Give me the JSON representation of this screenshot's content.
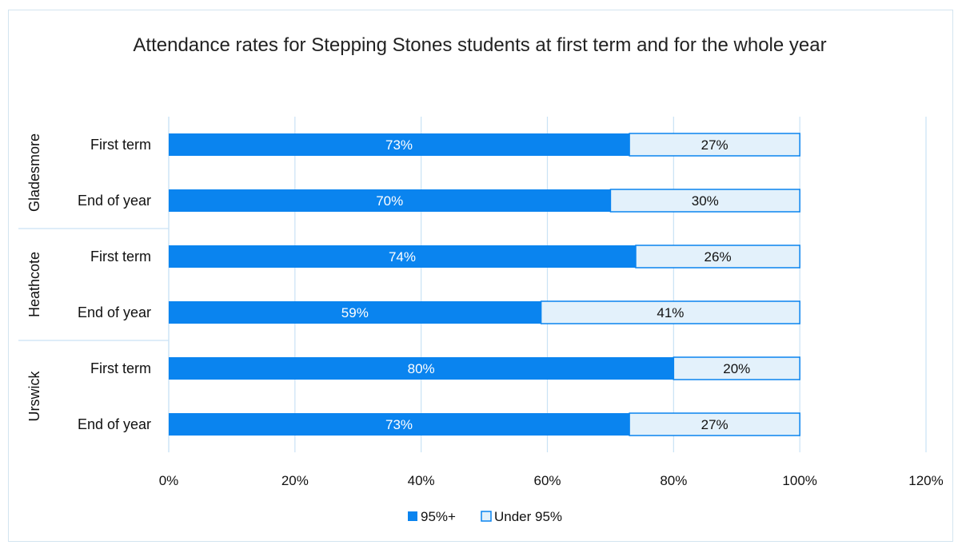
{
  "chart_data": {
    "type": "bar",
    "orientation": "horizontal",
    "stacked": true,
    "title": "Attendance rates for Stepping Stones students at first term and for the whole year",
    "groups": [
      {
        "name": "Gladesmore",
        "categories": [
          "First term",
          "End of year"
        ],
        "values": {
          "95%+": [
            73,
            70
          ],
          "Under 95%": [
            27,
            30
          ]
        }
      },
      {
        "name": "Heathcote",
        "categories": [
          "First term",
          "End of year"
        ],
        "values": {
          "95%+": [
            74,
            59
          ],
          "Under 95%": [
            26,
            41
          ]
        }
      },
      {
        "name": "Urswick",
        "categories": [
          "First term",
          "End of year"
        ],
        "values": {
          "95%+": [
            80,
            73
          ],
          "Under 95%": [
            20,
            27
          ]
        }
      }
    ],
    "series": [
      {
        "name": "95%+",
        "color": "#0a84ef"
      },
      {
        "name": "Under 95%",
        "color": "#e3f1fb",
        "stroke": "#0a84ef"
      }
    ],
    "xlim": [
      0,
      120
    ],
    "xticks": [
      0,
      20,
      40,
      60,
      80,
      100,
      120
    ],
    "tick_suffix": "%",
    "grid": true,
    "legend": "bottom"
  },
  "colors": {
    "grid": "#c9e2f5",
    "axis": "#c9e2f5",
    "label_on_dark": "#ffffff",
    "label_on_light": "#111111"
  }
}
